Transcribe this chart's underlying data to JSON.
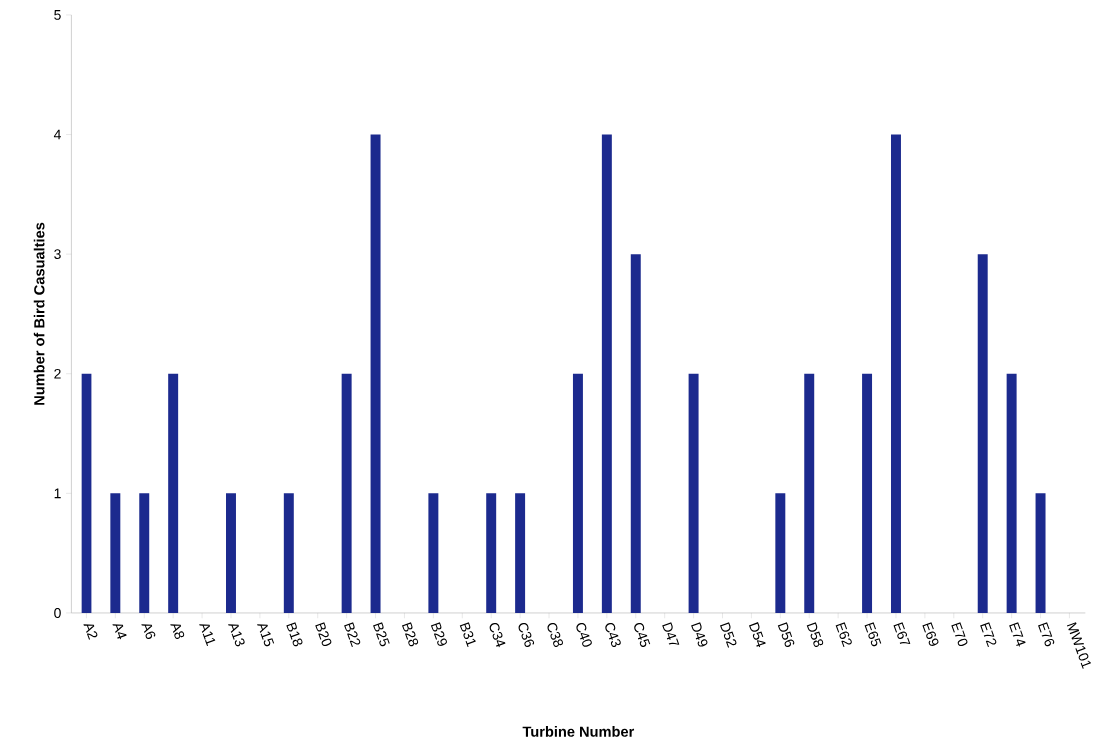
{
  "chart_data": {
    "type": "bar",
    "xlabel": "Turbine Number",
    "ylabel": "Number of Bird Casualties",
    "categories": [
      "A2",
      "A4",
      "A6",
      "A8",
      "A11",
      "A13",
      "A15",
      "B18",
      "B20",
      "B22",
      "B25",
      "B28",
      "B29",
      "B31",
      "C34",
      "C36",
      "C38",
      "C40",
      "C43",
      "C45",
      "D47",
      "D49",
      "D52",
      "D54",
      "D56",
      "D58",
      "E62",
      "E65",
      "E67",
      "E69",
      "E70",
      "E72",
      "E74",
      "E76",
      "MW101"
    ],
    "values": [
      2,
      1,
      1,
      2,
      0,
      1,
      0,
      1,
      0,
      2,
      4,
      0,
      1,
      0,
      1,
      1,
      0,
      2,
      4,
      3,
      0,
      2,
      0,
      0,
      1,
      2,
      0,
      2,
      4,
      0,
      0,
      3,
      2,
      1,
      0
    ],
    "color": "#1c2a8e",
    "ylim": [
      0,
      5
    ],
    "yticks": [
      0,
      1,
      2,
      3,
      4,
      5
    ],
    "grid": false
  }
}
